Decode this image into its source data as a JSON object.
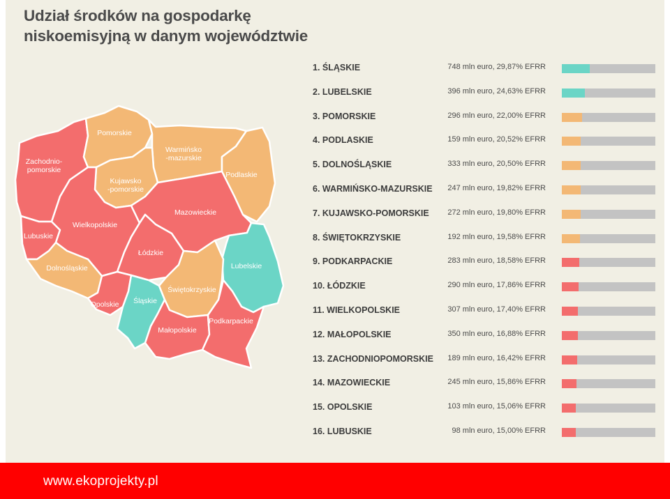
{
  "title": "Udział środków na gospodarkę niskoemisyjną w danym województwie",
  "footer": {
    "url": "www.ekoprojekty.pl"
  },
  "colors": {
    "high": "#6bd5c6",
    "medium": "#f3b875",
    "low": "#f36d6d",
    "bar_track": "#c3c3c3",
    "background": "#f1efe4",
    "footer": "#ff0000"
  },
  "map_regions": [
    {
      "id": "zachodniopomorskie",
      "label": "Zachodnio-|pomorskie",
      "tier": "low"
    },
    {
      "id": "pomorskie",
      "label": "Pomorskie",
      "tier": "medium"
    },
    {
      "id": "warminsko-mazurskie",
      "label": "Warmińsko|-mazurskie",
      "tier": "medium"
    },
    {
      "id": "podlaskie",
      "label": "Podlaskie",
      "tier": "medium"
    },
    {
      "id": "kujawsko-pomorskie",
      "label": "Kujawsko|-pomorskie",
      "tier": "medium"
    },
    {
      "id": "lubuskie",
      "label": "Lubuskie",
      "tier": "low"
    },
    {
      "id": "wielkopolskie",
      "label": "Wielkopolskie",
      "tier": "low"
    },
    {
      "id": "mazowieckie",
      "label": "Mazowieckie",
      "tier": "low"
    },
    {
      "id": "lodzkie",
      "label": "Łódzkie",
      "tier": "low"
    },
    {
      "id": "lubelskie",
      "label": "Lubelskie",
      "tier": "high"
    },
    {
      "id": "dolnoslaskie",
      "label": "Dolnośląskie",
      "tier": "medium"
    },
    {
      "id": "opolskie",
      "label": "Opolskie",
      "tier": "low"
    },
    {
      "id": "slaskie",
      "label": "Śląskie",
      "tier": "high"
    },
    {
      "id": "swietokrzyskie",
      "label": "Świętokrzyskie",
      "tier": "medium"
    },
    {
      "id": "malopolskie",
      "label": "Małopolskie",
      "tier": "low"
    },
    {
      "id": "podkarpackie",
      "label": "Podkarpackie",
      "tier": "low"
    }
  ],
  "chart_data": {
    "type": "bar",
    "title": "Udział środków na gospodarkę niskoemisyjną w danym województwie",
    "unit": "% EFRR",
    "xlim": [
      0,
      100
    ],
    "rows": [
      {
        "rank": "1.",
        "name": "ŚLĄSKIE",
        "value_text": "748 mln euro, 29,87% EFRR",
        "amount_mln_euro": 748,
        "share": 29.87,
        "tier": "high"
      },
      {
        "rank": "2.",
        "name": "LUBELSKIE",
        "value_text": "396 mln euro, 24,63% EFRR",
        "amount_mln_euro": 396,
        "share": 24.63,
        "tier": "high"
      },
      {
        "rank": "3.",
        "name": "POMORSKIE",
        "value_text": "296 mln euro, 22,00% EFRR",
        "amount_mln_euro": 296,
        "share": 22.0,
        "tier": "medium"
      },
      {
        "rank": "4.",
        "name": "PODLASKIE",
        "value_text": "159 mln euro, 20,52% EFRR",
        "amount_mln_euro": 159,
        "share": 20.52,
        "tier": "medium"
      },
      {
        "rank": "5.",
        "name": "DOLNOŚLĄSKIE",
        "value_text": "333 mln euro, 20,50% EFRR",
        "amount_mln_euro": 333,
        "share": 20.5,
        "tier": "medium"
      },
      {
        "rank": "6.",
        "name": "WARMIŃSKO-MAZURSKIE",
        "value_text": "247 mln euro, 19,82% EFRR",
        "amount_mln_euro": 247,
        "share": 19.82,
        "tier": "medium"
      },
      {
        "rank": "7.",
        "name": "KUJAWSKO-POMORSKIE",
        "value_text": "272 mln euro, 19,80% EFRR",
        "amount_mln_euro": 272,
        "share": 19.8,
        "tier": "medium"
      },
      {
        "rank": "8.",
        "name": "ŚWIĘTOKRZYSKIE",
        "value_text": "192 mln euro, 19,58% EFRR",
        "amount_mln_euro": 192,
        "share": 19.58,
        "tier": "medium"
      },
      {
        "rank": "9.",
        "name": "PODKARPACKIE",
        "value_text": "283 mln euro, 18,58% EFRR",
        "amount_mln_euro": 283,
        "share": 18.58,
        "tier": "low"
      },
      {
        "rank": "10.",
        "name": "ŁÓDZKIE",
        "value_text": "290 mln euro, 17,86% EFRR",
        "amount_mln_euro": 290,
        "share": 17.86,
        "tier": "low"
      },
      {
        "rank": "11.",
        "name": "WIELKOPOLSKIE",
        "value_text": "307 mln euro, 17,40% EFRR",
        "amount_mln_euro": 307,
        "share": 17.4,
        "tier": "low"
      },
      {
        "rank": "12.",
        "name": "MAŁOPOLSKIE",
        "value_text": "350 mln euro, 16,88% EFRR",
        "amount_mln_euro": 350,
        "share": 16.88,
        "tier": "low"
      },
      {
        "rank": "13.",
        "name": "ZACHODNIOPOMORSKIE",
        "value_text": "189 mln euro, 16,42% EFRR",
        "amount_mln_euro": 189,
        "share": 16.42,
        "tier": "low"
      },
      {
        "rank": "14.",
        "name": "MAZOWIECKIE",
        "value_text": "245 mln euro, 15,86% EFRR",
        "amount_mln_euro": 245,
        "share": 15.86,
        "tier": "low"
      },
      {
        "rank": "15.",
        "name": "OPOLSKIE",
        "value_text": "103 mln euro, 15,06% EFRR",
        "amount_mln_euro": 103,
        "share": 15.06,
        "tier": "low"
      },
      {
        "rank": "16.",
        "name": "LUBUSKIE",
        "value_text": "98 mln euro, 15,00% EFRR",
        "amount_mln_euro": 98,
        "share": 15.0,
        "tier": "low"
      }
    ]
  }
}
